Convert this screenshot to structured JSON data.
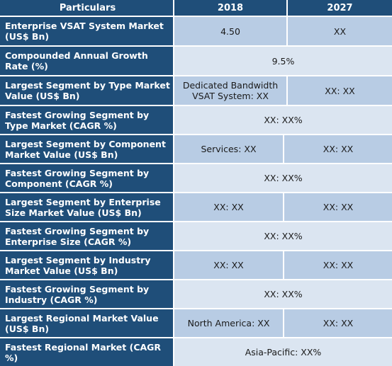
{
  "header": {
    "particulars": "Particulars",
    "year1": "2018",
    "year2": "2027"
  },
  "rows": [
    {
      "label": "Enterprise VSAT System Market (US$ Bn)",
      "v2018": "4.50",
      "v2027": "XX"
    },
    {
      "label": "Compounded Annual Growth Rate (%)",
      "merged": "9.5%"
    },
    {
      "label": "Largest Segment by Type Market Value (US$ Bn)",
      "v2018": "Dedicated Bandwidth VSAT System: XX",
      "v2027": "XX: XX"
    },
    {
      "label": "Fastest Growing Segment by Type Market (CAGR %)",
      "merged": "XX: XX%"
    },
    {
      "label": "Largest Segment by Component Market Value (US$ Bn)",
      "v2018": "Services: XX",
      "v2027": "XX: XX"
    },
    {
      "label": "Fastest Growing Segment by Component (CAGR %)",
      "merged": "XX: XX%"
    },
    {
      "label": "Largest Segment by Enterprise Size Market Value (US$ Bn)",
      "v2018": "XX: XX",
      "v2027": "XX: XX"
    },
    {
      "label": "Fastest Growing Segment by Enterprise Size (CAGR %)",
      "merged": "XX: XX%"
    },
    {
      "label": "Largest Segment by Industry Market Value (US$ Bn)",
      "v2018": "XX: XX",
      "v2027": "XX: XX"
    },
    {
      "label": "Fastest Growing Segment by Industry (CAGR %)",
      "merged": "XX: XX%"
    },
    {
      "label": "Largest Regional Market Value (US$ Bn)",
      "v2018": "North America: XX",
      "v2027": "XX: XX"
    },
    {
      "label": "Fastest Regional Market (CAGR %)",
      "merged": "Asia-Pacific: XX%"
    }
  ],
  "colors": {
    "header_bg": "#1f4e79",
    "cell_blue": "#b8cce4",
    "cell_light": "#dbe5f1"
  }
}
